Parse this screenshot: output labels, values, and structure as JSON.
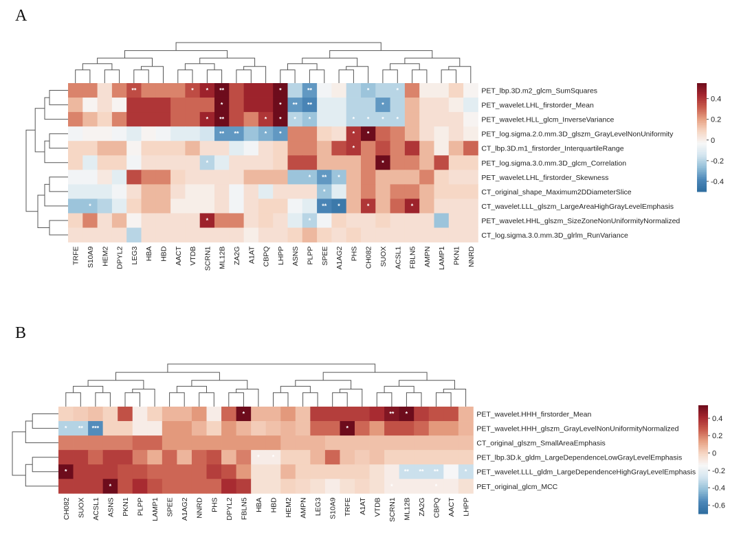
{
  "chart_data": [
    {
      "type": "heatmap",
      "panel": "A",
      "columns": [
        "TRFE",
        "S10A9",
        "HEM2",
        "DPYL2",
        "LEG3",
        "HBA",
        "HBD",
        "AACT",
        "VTDB",
        "SCRN1",
        "ML12B",
        "ZA2G",
        "A1AT",
        "CBPQ",
        "LHPP",
        "ASNS",
        "PLPP",
        "SPEE",
        "A1AG2",
        "PHS",
        "CH082",
        "SUOX",
        "ACSL1",
        "FBLN5",
        "AMPN",
        "LAMP1",
        "PKN1",
        "NNRD"
      ],
      "column_labels": [
        "TRFE",
        "S10A9",
        "HEM2",
        "DPYL2",
        "LEG3",
        "HBA",
        "HBD",
        "AACT",
        "VTDB",
        "SCRN1",
        "ML12B",
        "ZA2G",
        "A1AT",
        "CBPQ",
        "LHPP",
        "ASNS",
        "PLPP",
        "SPEE",
        "A1AG2",
        "PHS",
        "CH082",
        "SUOX",
        "ACSL1",
        "FBLN5",
        "AMPN",
        "LAMP1",
        "PKN1",
        "NNRD"
      ],
      "rows": [
        "PET_lbp.3D.m2_glcm_SumSquares",
        "PET_wavelet.LHL_firstorder_Mean",
        "PET_wavelet.HLL_glcm_InverseVariance",
        "PET_log.sigma.2.0.mm.3D_glszm_GrayLevelNonUniformity",
        "CT_lbp.3D.m1_firstorder_InterquartileRange",
        "PET_log.sigma.3.0.mm.3D_glcm_Correlation",
        "PET_wavelet.LHL_firstorder_Skewness",
        "CT_original_shape_Maximum2DDiameterSlice",
        "CT_wavelet.LLL_glszm_LargeAreaHighGrayLevelEmphasis",
        "PET_wavelet.HHL_glszm_SizeZoneNonUniformityNormalized",
        "CT_log.sigma.3.0.mm.3D_glrlm_RunVariance"
      ],
      "values": [
        [
          0.25,
          0.25,
          0.05,
          0.25,
          0.35,
          0.25,
          0.25,
          0.25,
          0.35,
          0.45,
          0.55,
          0.35,
          0.45,
          0.45,
          0.55,
          -0.2,
          -0.35,
          -0.05,
          0.0,
          -0.2,
          -0.25,
          -0.2,
          -0.2,
          0.25,
          0.0,
          0.0,
          0.08,
          -0.02
        ],
        [
          0.15,
          -0.02,
          0.05,
          -0.02,
          0.4,
          0.4,
          0.4,
          0.3,
          0.3,
          0.3,
          0.55,
          0.35,
          0.45,
          0.45,
          0.55,
          -0.35,
          -0.4,
          -0.1,
          -0.1,
          -0.2,
          -0.2,
          -0.35,
          -0.2,
          0.15,
          0.05,
          0.05,
          0.0,
          -0.1
        ],
        [
          0.25,
          0.15,
          0.08,
          0.25,
          0.4,
          0.4,
          0.4,
          0.3,
          0.3,
          0.45,
          0.55,
          0.35,
          0.25,
          0.4,
          0.55,
          -0.2,
          -0.25,
          -0.1,
          -0.1,
          -0.2,
          -0.2,
          -0.2,
          -0.2,
          0.15,
          0.05,
          0.05,
          0.05,
          -0.02
        ],
        [
          -0.05,
          -0.02,
          -0.02,
          -0.05,
          -0.1,
          -0.02,
          -0.05,
          -0.1,
          -0.1,
          -0.15,
          -0.35,
          -0.35,
          -0.25,
          -0.3,
          -0.35,
          0.25,
          0.25,
          0.08,
          0.05,
          0.4,
          0.55,
          0.3,
          0.25,
          0.15,
          0.05,
          0.0,
          0.05,
          0.0
        ],
        [
          0.08,
          0.08,
          0.15,
          0.15,
          -0.02,
          0.08,
          0.08,
          0.08,
          0.15,
          0.05,
          0.05,
          -0.1,
          -0.05,
          0.05,
          0.08,
          0.25,
          0.25,
          0.15,
          0.35,
          0.4,
          0.25,
          0.35,
          0.25,
          0.4,
          0.15,
          0.0,
          0.15,
          0.3
        ],
        [
          0.08,
          -0.1,
          0.08,
          0.08,
          -0.05,
          0.05,
          0.05,
          0.05,
          0.05,
          -0.2,
          -0.1,
          0.05,
          0.05,
          0.05,
          0.08,
          0.35,
          0.35,
          0.15,
          0.15,
          0.15,
          0.25,
          0.55,
          0.25,
          0.25,
          0.15,
          0.35,
          0.08,
          0.08
        ],
        [
          -0.05,
          -0.05,
          0.02,
          -0.1,
          0.35,
          0.25,
          0.25,
          0.08,
          0.05,
          0.05,
          0.05,
          0.05,
          0.15,
          0.15,
          0.15,
          -0.25,
          -0.25,
          -0.35,
          -0.25,
          0.15,
          0.25,
          0.15,
          0.15,
          0.15,
          0.25,
          0.08,
          0.05,
          0.05
        ],
        [
          -0.1,
          -0.1,
          -0.1,
          -0.05,
          0.05,
          0.15,
          0.15,
          0.05,
          0.0,
          0.0,
          0.05,
          -0.05,
          0.05,
          -0.1,
          0.05,
          0.05,
          0.05,
          -0.25,
          -0.1,
          0.15,
          0.25,
          0.15,
          0.25,
          0.25,
          0.15,
          0.08,
          0.08,
          0.08
        ],
        [
          -0.25,
          -0.25,
          -0.2,
          -0.1,
          0.08,
          0.15,
          0.15,
          0.0,
          0.0,
          0.0,
          0.05,
          -0.05,
          0.05,
          0.08,
          0.08,
          -0.05,
          -0.1,
          -0.4,
          -0.45,
          0.15,
          0.4,
          0.15,
          0.3,
          0.45,
          0.15,
          0.05,
          0.05,
          0.05
        ],
        [
          0.08,
          0.25,
          0.05,
          0.15,
          -0.02,
          0.05,
          0.05,
          0.05,
          0.05,
          0.45,
          0.25,
          0.25,
          0.05,
          0.08,
          0.05,
          -0.1,
          -0.2,
          -0.05,
          0.08,
          0.05,
          0.05,
          0.08,
          0.05,
          0.05,
          0.05,
          -0.25,
          0.05,
          0.05
        ],
        [
          0.05,
          0.05,
          0.05,
          0.05,
          -0.2,
          0.05,
          0.05,
          0.05,
          0.05,
          0.05,
          0.05,
          0.05,
          0.0,
          0.05,
          0.05,
          0.08,
          0.15,
          0.08,
          0.05,
          0.08,
          0.05,
          0.05,
          0.05,
          0.05,
          0.05,
          0.05,
          0.05,
          0.05
        ]
      ],
      "significance": [
        [
          "",
          "",
          "",
          "",
          "**",
          "",
          "",
          "",
          "*",
          "*",
          "**",
          "",
          "",
          "",
          "*",
          "",
          "**",
          "",
          "",
          "",
          "*",
          "",
          "*",
          "",
          "",
          "",
          "",
          ""
        ],
        [
          "",
          "",
          "",
          "",
          "",
          "",
          "",
          "",
          "",
          "",
          "*",
          "",
          "",
          "",
          "*",
          "**",
          "**",
          "",
          "",
          "",
          "",
          "*",
          "",
          "",
          "",
          "",
          "",
          ""
        ],
        [
          "",
          "",
          "",
          "",
          "",
          "",
          "",
          "",
          "",
          "*",
          "**",
          "",
          "",
          "*",
          "*",
          "*",
          "*",
          "",
          "",
          "*",
          "*",
          "*",
          "*",
          "",
          "",
          "",
          "",
          ""
        ],
        [
          "",
          "",
          "",
          "",
          "",
          "",
          "",
          "",
          "",
          "",
          "**",
          "**",
          "",
          "*",
          "*",
          "",
          "",
          "",
          "",
          "*",
          "*",
          "",
          "",
          "",
          "",
          "",
          "",
          ""
        ],
        [
          "",
          "",
          "",
          "",
          "",
          "",
          "",
          "",
          "",
          "",
          "",
          "",
          "",
          "",
          "",
          "",
          "",
          "",
          "",
          "*",
          "",
          "",
          "",
          "",
          "",
          "",
          "",
          ""
        ],
        [
          "",
          "",
          "",
          "",
          "",
          "",
          "",
          "",
          "",
          "*",
          "",
          "",
          "",
          "",
          "",
          "",
          "",
          "",
          "",
          "",
          "",
          "*",
          "",
          "",
          "",
          "",
          "",
          ""
        ],
        [
          "",
          "",
          "",
          "",
          "",
          "",
          "",
          "",
          "",
          "",
          "",
          "",
          "",
          "",
          "",
          "",
          "*",
          "**",
          "*",
          "",
          "",
          "",
          "",
          "",
          "",
          "",
          "",
          ""
        ],
        [
          "",
          "",
          "",
          "",
          "",
          "",
          "",
          "",
          "",
          "",
          "",
          "",
          "",
          "",
          "",
          "",
          "",
          "*",
          "",
          "",
          "",
          "",
          "",
          "",
          "",
          "",
          "",
          ""
        ],
        [
          "",
          "*",
          "",
          "",
          "",
          "",
          "",
          "",
          "",
          "",
          "",
          "",
          "",
          "",
          "",
          "",
          "",
          "**",
          "*",
          "",
          "*",
          "",
          "",
          "*",
          "",
          "",
          "",
          ""
        ],
        [
          "",
          "",
          "",
          "",
          "",
          "",
          "",
          "",
          "",
          "*",
          "",
          "",
          "",
          "",
          "",
          "",
          "*",
          "",
          "",
          "",
          "",
          "",
          "",
          "",
          "",
          "",
          "",
          ""
        ],
        [
          "",
          "",
          "",
          "",
          "",
          "",
          "",
          "",
          "",
          "",
          "",
          "",
          "",
          "",
          "",
          "",
          "",
          "",
          "",
          "",
          "",
          "",
          "",
          "",
          "",
          "",
          "",
          ""
        ]
      ],
      "colorbar_ticks": [
        "0.4",
        "0.2",
        "0",
        "-0.2",
        "-0.4"
      ],
      "colorbar_range": [
        -0.5,
        0.55
      ]
    },
    {
      "type": "heatmap",
      "panel": "B",
      "columns": [
        "CH082",
        "SUOX",
        "ACSL1",
        "ASNS",
        "PKN1",
        "PLPP",
        "LAMP1",
        "SPEE",
        "A1AG2",
        "NNRD",
        "PHS",
        "DPYL2",
        "FBLN5",
        "HBA",
        "HBD",
        "HEM2",
        "AMPN",
        "LEG3",
        "S10A9",
        "TRFE",
        "A1AT",
        "VTDB",
        "SCRN1",
        "ML12B",
        "ZA2G",
        "CBPQ",
        "AACT",
        "LHPP"
      ],
      "column_labels": [
        "CH082",
        "SUOX",
        "ACSL1",
        "ASNS",
        "PKN1",
        "PLPP",
        "LAMP1",
        "SPEE",
        "A1AG2",
        "NNRD",
        "PHS",
        "DPYL2",
        "FBLN5",
        "HBA",
        "HBD",
        "HEM2",
        "AMPN",
        "LEG3",
        "S10A9",
        "TRFE",
        "A1AT",
        "VTDB",
        "SCRN1",
        "ML12B",
        "ZA2G",
        "CBPQ",
        "AACT",
        "LHPP"
      ],
      "rows": [
        "PET_wavelet.HHH_firstorder_Mean",
        "PET_wavelet.HHH_glszm_GrayLevelNonUniformityNormalized",
        "CT_original_glszm_SmallAreaEmphasis",
        "PET_lbp.3D.k_gldm_LargeDependenceLowGrayLevelEmphasis",
        "PET_wavelet.LLL_gldm_LargeDependenceHighGrayLevelEmphasis",
        "PET_original_glcm_MCC"
      ],
      "values": [
        [
          0.0,
          0.02,
          0.05,
          0.0,
          0.3,
          -0.1,
          0.0,
          0.08,
          0.08,
          0.15,
          -0.1,
          0.25,
          0.55,
          0.08,
          0.08,
          0.15,
          0.05,
          0.35,
          0.35,
          0.35,
          0.35,
          0.4,
          0.5,
          0.55,
          0.35,
          0.3,
          0.3,
          0.08
        ],
        [
          -0.35,
          -0.35,
          -0.55,
          0.0,
          0.0,
          -0.1,
          -0.1,
          0.15,
          0.15,
          0.08,
          0.0,
          0.15,
          0.08,
          0.02,
          0.05,
          0.08,
          0.05,
          0.25,
          0.25,
          0.55,
          0.25,
          0.15,
          0.3,
          0.3,
          0.25,
          0.15,
          0.15,
          0.08
        ],
        [
          0.2,
          0.2,
          0.2,
          0.2,
          0.2,
          0.25,
          0.25,
          0.15,
          0.15,
          0.15,
          0.15,
          0.15,
          0.15,
          0.15,
          0.15,
          0.08,
          0.08,
          0.08,
          0.05,
          0.05,
          0.05,
          0.05,
          0.05,
          0.05,
          0.05,
          0.05,
          0.05,
          0.05
        ],
        [
          0.35,
          0.35,
          0.25,
          0.35,
          0.35,
          0.2,
          0.1,
          0.25,
          0.08,
          0.25,
          0.3,
          0.08,
          0.2,
          -0.1,
          -0.1,
          0.0,
          0.0,
          0.08,
          0.25,
          0.05,
          0.02,
          0.05,
          0.0,
          0.0,
          0.0,
          0.0,
          0.0,
          0.0
        ],
        [
          0.55,
          0.35,
          0.35,
          0.35,
          0.3,
          0.3,
          0.25,
          0.25,
          0.25,
          0.25,
          0.35,
          0.3,
          0.15,
          -0.05,
          -0.05,
          0.08,
          0.0,
          0.0,
          0.0,
          0.0,
          0.0,
          -0.05,
          -0.1,
          -0.3,
          -0.3,
          -0.3,
          -0.15,
          -0.3
        ],
        [
          0.35,
          0.35,
          0.35,
          0.6,
          0.3,
          0.4,
          0.3,
          0.25,
          0.25,
          0.25,
          0.25,
          0.4,
          0.35,
          -0.05,
          -0.05,
          0.0,
          -0.02,
          -0.05,
          -0.1,
          -0.05,
          -0.02,
          -0.05,
          -0.1,
          -0.1,
          -0.1,
          -0.1,
          -0.1,
          -0.05
        ]
      ],
      "significance": [
        [
          "",
          "",
          "",
          "",
          "",
          "",
          "",
          "",
          "",
          "",
          "",
          "",
          "*",
          "",
          "",
          "",
          "",
          "",
          "",
          "",
          "",
          "",
          "**",
          "*",
          "",
          "",
          "",
          ""
        ],
        [
          "*",
          "**",
          "***",
          "",
          "",
          "",
          "",
          "",
          "",
          "",
          "",
          "",
          "",
          "",
          "",
          "",
          "",
          "",
          "",
          "*",
          "",
          "",
          "",
          "",
          "",
          "",
          "",
          ""
        ],
        [
          "",
          "",
          "",
          "",
          "",
          "",
          "",
          "",
          "",
          "",
          "",
          "",
          "",
          "",
          "",
          "",
          "",
          "",
          "",
          "",
          "",
          "",
          "",
          "",
          "",
          "",
          "",
          ""
        ],
        [
          "",
          "",
          "",
          "",
          "",
          "",
          "",
          "",
          "",
          "",
          "",
          "",
          "",
          "*",
          "*",
          "",
          "",
          "",
          "",
          "",
          "",
          "",
          "",
          "",
          "",
          "",
          "",
          ""
        ],
        [
          "*",
          "",
          "",
          "",
          "",
          "",
          "",
          "",
          "",
          "",
          "",
          "",
          "",
          "",
          "",
          "",
          "",
          "",
          "",
          "",
          "",
          "",
          "",
          "**",
          "**",
          "**",
          "",
          "*"
        ],
        [
          "",
          "",
          "",
          "*",
          "",
          "",
          "",
          "",
          "",
          "",
          "",
          "",
          "",
          "",
          "",
          "",
          "",
          "",
          "",
          "",
          "",
          "",
          "*",
          "",
          "",
          "*",
          "",
          ""
        ]
      ],
      "colorbar_ticks": [
        "0.4",
        "0.2",
        "0",
        "-0.2",
        "-0.4",
        "-0.6"
      ],
      "colorbar_range": [
        -0.7,
        0.55
      ]
    }
  ],
  "colors": {
    "scale": [
      "#2f6d9f",
      "#4d88b9",
      "#93bfd8",
      "#d3e5ef",
      "#f7f7f7",
      "#f6d6c4",
      "#e7a183",
      "#c85b4c",
      "#a5272f",
      "#6d0c1c"
    ]
  }
}
